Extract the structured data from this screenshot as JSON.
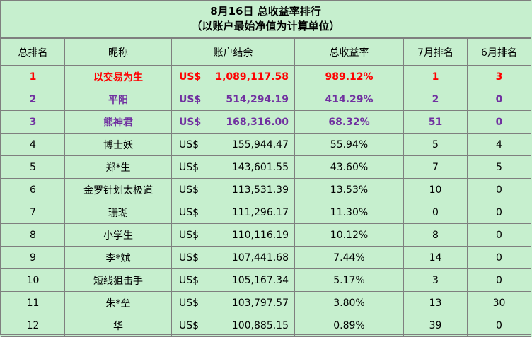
{
  "title": {
    "line1": "8月16日 总收益率排行",
    "line2": "（以账户最始净值为计算单位）"
  },
  "headers": {
    "rank": "总排名",
    "nickname": "昵称",
    "balance": "账户结余",
    "return": "总收益率",
    "rank_july": "7月排名",
    "rank_june": "6月排名"
  },
  "currency": "US$",
  "rows": [
    {
      "rank": "1",
      "nickname": "以交易为生",
      "balance": "1,089,117.58",
      "return": "989.12%",
      "july": "1",
      "june": "3"
    },
    {
      "rank": "2",
      "nickname": "平阳",
      "balance": "514,294.19",
      "return": "414.29%",
      "july": "2",
      "june": "0"
    },
    {
      "rank": "3",
      "nickname": "熊神君",
      "balance": "168,316.00",
      "return": "68.32%",
      "july": "51",
      "june": "0"
    },
    {
      "rank": "4",
      "nickname": "博士妖",
      "balance": "155,944.47",
      "return": "55.94%",
      "july": "5",
      "june": "4"
    },
    {
      "rank": "5",
      "nickname": "郑*生",
      "balance": "143,601.55",
      "return": "43.60%",
      "july": "7",
      "june": "5"
    },
    {
      "rank": "6",
      "nickname": "金罗针划太极道",
      "balance": "113,531.39",
      "return": "13.53%",
      "july": "10",
      "june": "0"
    },
    {
      "rank": "7",
      "nickname": "珊瑚",
      "balance": "111,296.17",
      "return": "11.30%",
      "july": "0",
      "june": "0"
    },
    {
      "rank": "8",
      "nickname": "小学生",
      "balance": "110,116.19",
      "return": "10.12%",
      "july": "8",
      "june": "0"
    },
    {
      "rank": "9",
      "nickname": "李*斌",
      "balance": "107,441.68",
      "return": "7.44%",
      "july": "14",
      "june": "0"
    },
    {
      "rank": "10",
      "nickname": "短线狙击手",
      "balance": "105,167.34",
      "return": "5.17%",
      "july": "3",
      "june": "0"
    },
    {
      "rank": "11",
      "nickname": "朱*垒",
      "balance": "103,797.57",
      "return": "3.80%",
      "july": "13",
      "june": "30"
    },
    {
      "rank": "12",
      "nickname": "华",
      "balance": "100,885.15",
      "return": "0.89%",
      "july": "39",
      "june": "0"
    }
  ],
  "colors": {
    "background": "#c6efce",
    "first_place": "#ff0000",
    "second_third_place": "#7030a0",
    "grid": "#7f7f7f"
  }
}
